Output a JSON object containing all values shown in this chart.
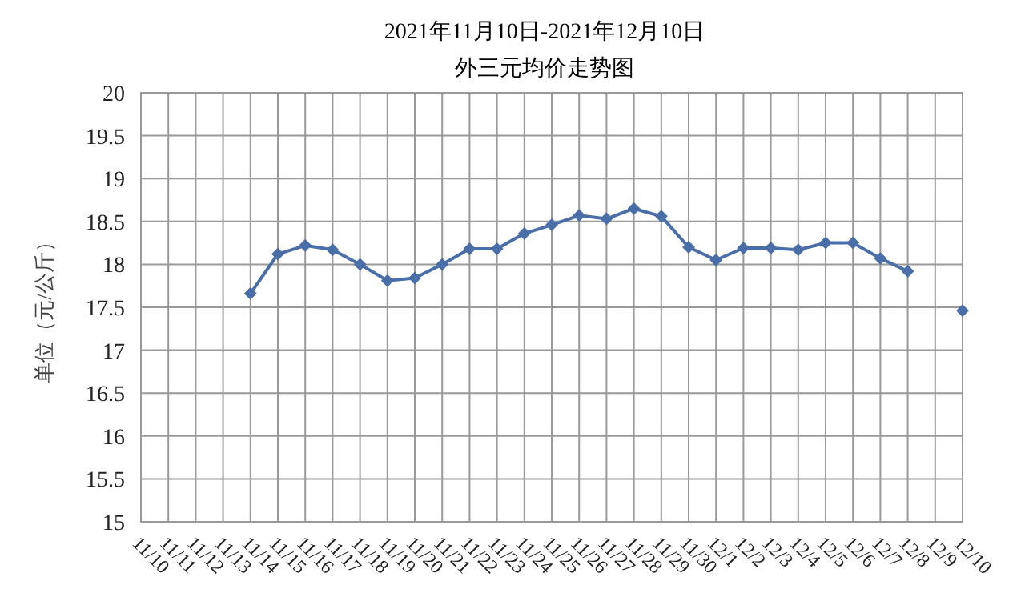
{
  "chart_data": {
    "type": "line",
    "title": "2021年11月10日-2021年12月10日",
    "subtitle": "外三元均价走势图",
    "ylabel": "单位（元/公斤）",
    "categories": [
      "11/10",
      "11/11",
      "11/12",
      "11/13",
      "11/14",
      "11/15",
      "11/16",
      "11/17",
      "11/18",
      "11/19",
      "11/20",
      "11/21",
      "11/22",
      "11/23",
      "11/24",
      "11/25",
      "11/26",
      "11/27",
      "11/28",
      "11/29",
      "11/30",
      "12/1",
      "12/2",
      "12/3",
      "12/4",
      "12/5",
      "12/6",
      "12/7",
      "12/8",
      "12/9",
      "12/10"
    ],
    "series": [
      {
        "color": "#4a6fa8",
        "values": [
          null,
          null,
          null,
          null,
          17.66,
          18.12,
          18.22,
          18.17,
          18.0,
          17.81,
          17.84,
          18.0,
          18.18,
          18.18,
          18.36,
          18.46,
          18.57,
          18.53,
          18.65,
          18.56,
          18.2,
          18.05,
          18.19,
          18.19,
          18.17,
          18.25,
          18.25,
          18.07,
          17.92,
          null,
          17.46
        ]
      }
    ],
    "ylim": [
      15,
      20
    ],
    "yticks": [
      15,
      15.5,
      16,
      16.5,
      17,
      17.5,
      18,
      18.5,
      19,
      19.5,
      20
    ],
    "grid": true,
    "marker": "diamond"
  }
}
